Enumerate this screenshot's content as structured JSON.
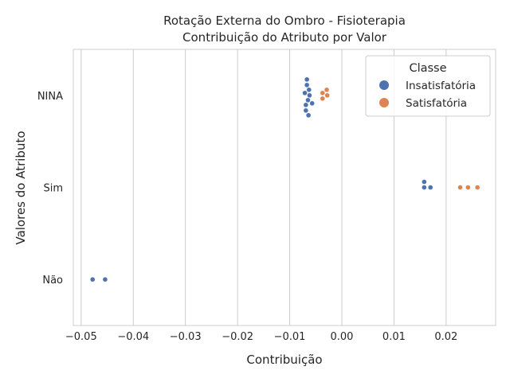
{
  "chart_data": {
    "type": "scatter",
    "subtype": "swarm",
    "title": "Rotação Externa do Ombro - Fisioterapia",
    "subtitle": "Contribuição do Atributo por Valor",
    "xlabel": "Contribuição",
    "ylabel": "Valores do Atributo",
    "xlim": [
      -0.0515,
      0.0295
    ],
    "x_ticks": [
      -0.05,
      -0.04,
      -0.03,
      -0.02,
      -0.01,
      0.0,
      0.01,
      0.02
    ],
    "x_tick_labels": [
      "−0.05",
      "−0.04",
      "−0.03",
      "−0.02",
      "−0.01",
      "0.00",
      "0.01",
      "0.02"
    ],
    "categories": [
      "NINA",
      "Sim",
      "Não"
    ],
    "grid": "vertical",
    "legend": {
      "title": "Classe",
      "placement": "top-right"
    },
    "series": [
      {
        "name": "Insatisfatória",
        "color": "#4c72b0",
        "points": [
          {
            "category": "NINA",
            "x": -0.0062
          },
          {
            "category": "NINA",
            "x": -0.0063
          },
          {
            "category": "NINA",
            "x": -0.0065
          },
          {
            "category": "NINA",
            "x": -0.0067
          },
          {
            "category": "NINA",
            "x": -0.0069
          },
          {
            "category": "NINA",
            "x": -0.0071
          },
          {
            "category": "NINA",
            "x": -0.0057
          },
          {
            "category": "NINA",
            "x": -0.0069
          },
          {
            "category": "NINA",
            "x": -0.0067
          },
          {
            "category": "NINA",
            "x": -0.0064
          },
          {
            "category": "Sim",
            "x": 0.0158
          },
          {
            "category": "Sim",
            "x": 0.0158
          },
          {
            "category": "Sim",
            "x": 0.017
          },
          {
            "category": "Não",
            "x": -0.0478
          },
          {
            "category": "Não",
            "x": -0.0454
          }
        ]
      },
      {
        "name": "Satisfatória",
        "color": "#dd8452",
        "points": [
          {
            "category": "NINA",
            "x": -0.0028
          },
          {
            "category": "NINA",
            "x": -0.0037
          },
          {
            "category": "NINA",
            "x": -0.0037
          },
          {
            "category": "NINA",
            "x": -0.0029
          },
          {
            "category": "Sim",
            "x": 0.0227
          },
          {
            "category": "Sim",
            "x": 0.0242
          },
          {
            "category": "Sim",
            "x": 0.026
          }
        ]
      }
    ]
  }
}
